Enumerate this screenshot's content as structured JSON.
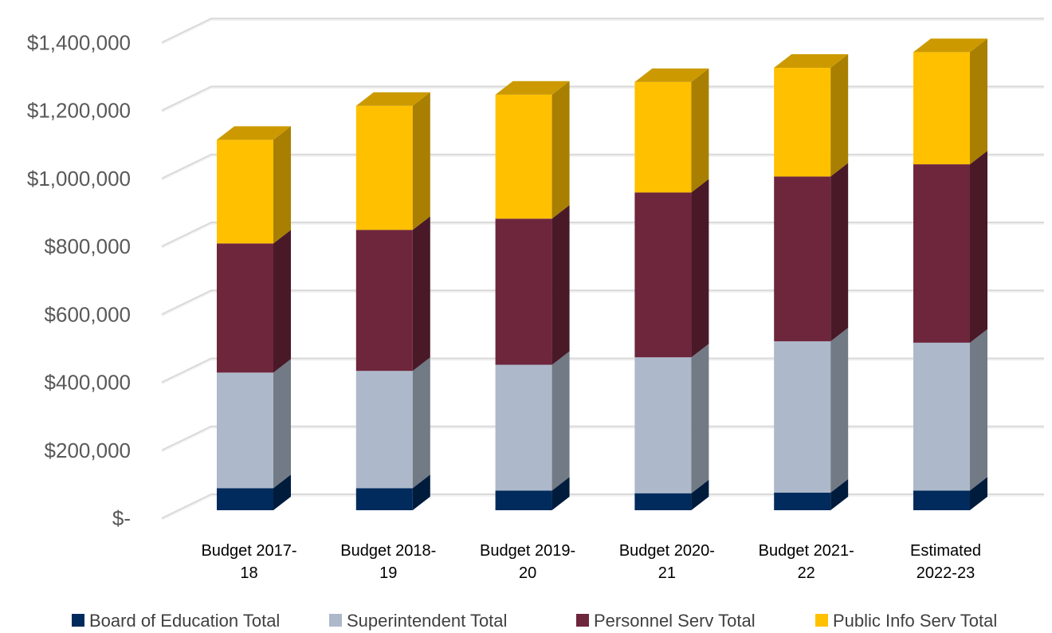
{
  "chart_data": {
    "type": "bar",
    "stacked": true,
    "three_d": true,
    "categories": [
      [
        "Budget 2017-",
        "18"
      ],
      [
        "Budget 2018-",
        "19"
      ],
      [
        "Budget 2019-",
        "20"
      ],
      [
        "Budget 2020-",
        "21"
      ],
      [
        "Budget 2021-",
        "22"
      ],
      [
        "Estimated",
        "2022-23"
      ]
    ],
    "series": [
      {
        "name": "Board of Education Total",
        "color": "#002b5c",
        "values": [
          65000,
          65000,
          58000,
          50000,
          52000,
          58000
        ]
      },
      {
        "name": "Superintendent Total",
        "color": "#adb9ca",
        "values": [
          340000,
          345000,
          370000,
          400000,
          445000,
          435000
        ]
      },
      {
        "name": "Personnel Serv Total",
        "color": "#6e263d",
        "values": [
          380000,
          415000,
          430000,
          485000,
          485000,
          525000
        ]
      },
      {
        "name": "Public Info Serv Total",
        "color": "#ffc000",
        "values": [
          305000,
          365000,
          365000,
          325000,
          320000,
          330000
        ]
      }
    ],
    "y_ticks": [
      "$-",
      "$200,000",
      "$400,000",
      "$600,000",
      "$800,000",
      "$1,000,000",
      "$1,200,000",
      "$1,400,000"
    ],
    "ylim": [
      0,
      1400000
    ],
    "title": "",
    "xlabel": "",
    "ylabel": "",
    "grid": true,
    "legend_position": "bottom"
  }
}
